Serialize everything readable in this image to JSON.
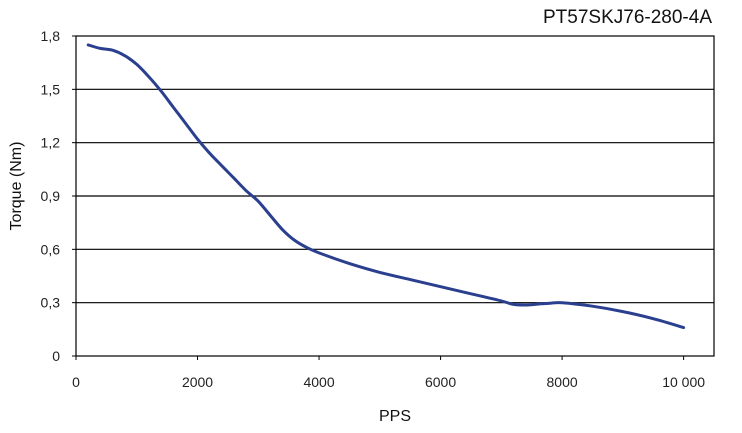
{
  "chart_data": {
    "type": "line",
    "title": "PT57SKJ76-280-4A",
    "xlabel": "PPS",
    "ylabel": "Torque (Nm)",
    "xlim": [
      0,
      10500
    ],
    "ylim": [
      0,
      1.8
    ],
    "x_ticks": [
      0,
      2000,
      4000,
      6000,
      8000,
      10000
    ],
    "x_tick_labels": [
      "0",
      "2000",
      "4000",
      "6000",
      "8000",
      "10 000"
    ],
    "y_ticks": [
      0,
      0.3,
      0.6,
      0.9,
      1.2,
      1.5,
      1.8
    ],
    "y_tick_labels": [
      "0",
      "0,3",
      "0,6",
      "0,9",
      "1,2",
      "1,5",
      "1,8"
    ],
    "grid": "horizontal",
    "series_color": "#2b3f8f",
    "series": [
      {
        "x": [
          200,
          400,
          600,
          800,
          1000,
          1200,
          1400,
          1600,
          1800,
          2000,
          2200,
          2400,
          2600,
          2800,
          3000,
          3200,
          3400,
          3600,
          3800,
          4000,
          4500,
          5000,
          5500,
          6000,
          6500,
          7000,
          7200,
          7400,
          7600,
          7800,
          8000,
          8500,
          9000,
          9500,
          10000
        ],
        "y": [
          1.75,
          1.73,
          1.72,
          1.69,
          1.64,
          1.57,
          1.49,
          1.4,
          1.31,
          1.22,
          1.14,
          1.07,
          1.0,
          0.93,
          0.87,
          0.79,
          0.71,
          0.65,
          0.61,
          0.58,
          0.52,
          0.47,
          0.43,
          0.39,
          0.35,
          0.31,
          0.29,
          0.287,
          0.292,
          0.297,
          0.3,
          0.28,
          0.25,
          0.21,
          0.16
        ]
      }
    ]
  }
}
